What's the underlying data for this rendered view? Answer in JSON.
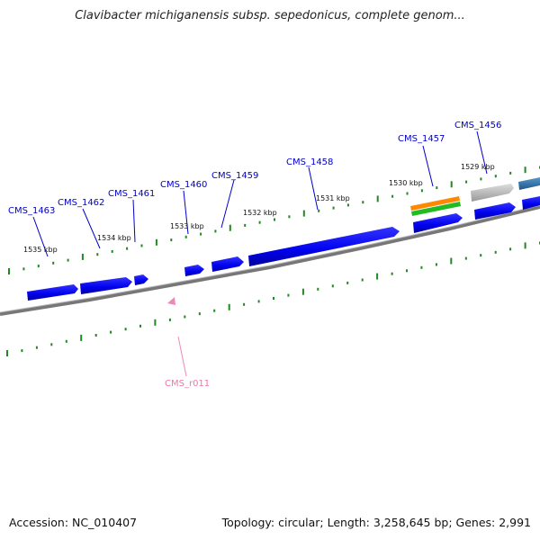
{
  "title": "Clavibacter michiganensis subsp. sepedonicus, complete genom...",
  "footer": {
    "accession": "Accession: NC_010407",
    "summary": "Topology: circular; Length: 3,258,645 bp; Genes: 2,991"
  },
  "genes": [
    "CMS_1463",
    "CMS_1462",
    "CMS_1461",
    "CMS_1460",
    "CMS_1459",
    "CMS_1458",
    "CMS_1457",
    "CMS_1456"
  ],
  "rna": [
    "CMS_r011"
  ],
  "kbp_ticks": [
    "1535 kbp",
    "1534 kbp",
    "1533 kbp",
    "1532 kbp",
    "1531 kbp",
    "1530 kbp",
    "1529 kbp"
  ],
  "colors": {
    "gene": "#0000ee",
    "gene_dark": "#000099",
    "backbone": "#777777",
    "tick": "#228822",
    "rrna": "#ee88bb",
    "orange": "#ff8800",
    "green": "#22bb22",
    "gray": "#aaaaaa",
    "steel": "#3377aa"
  }
}
